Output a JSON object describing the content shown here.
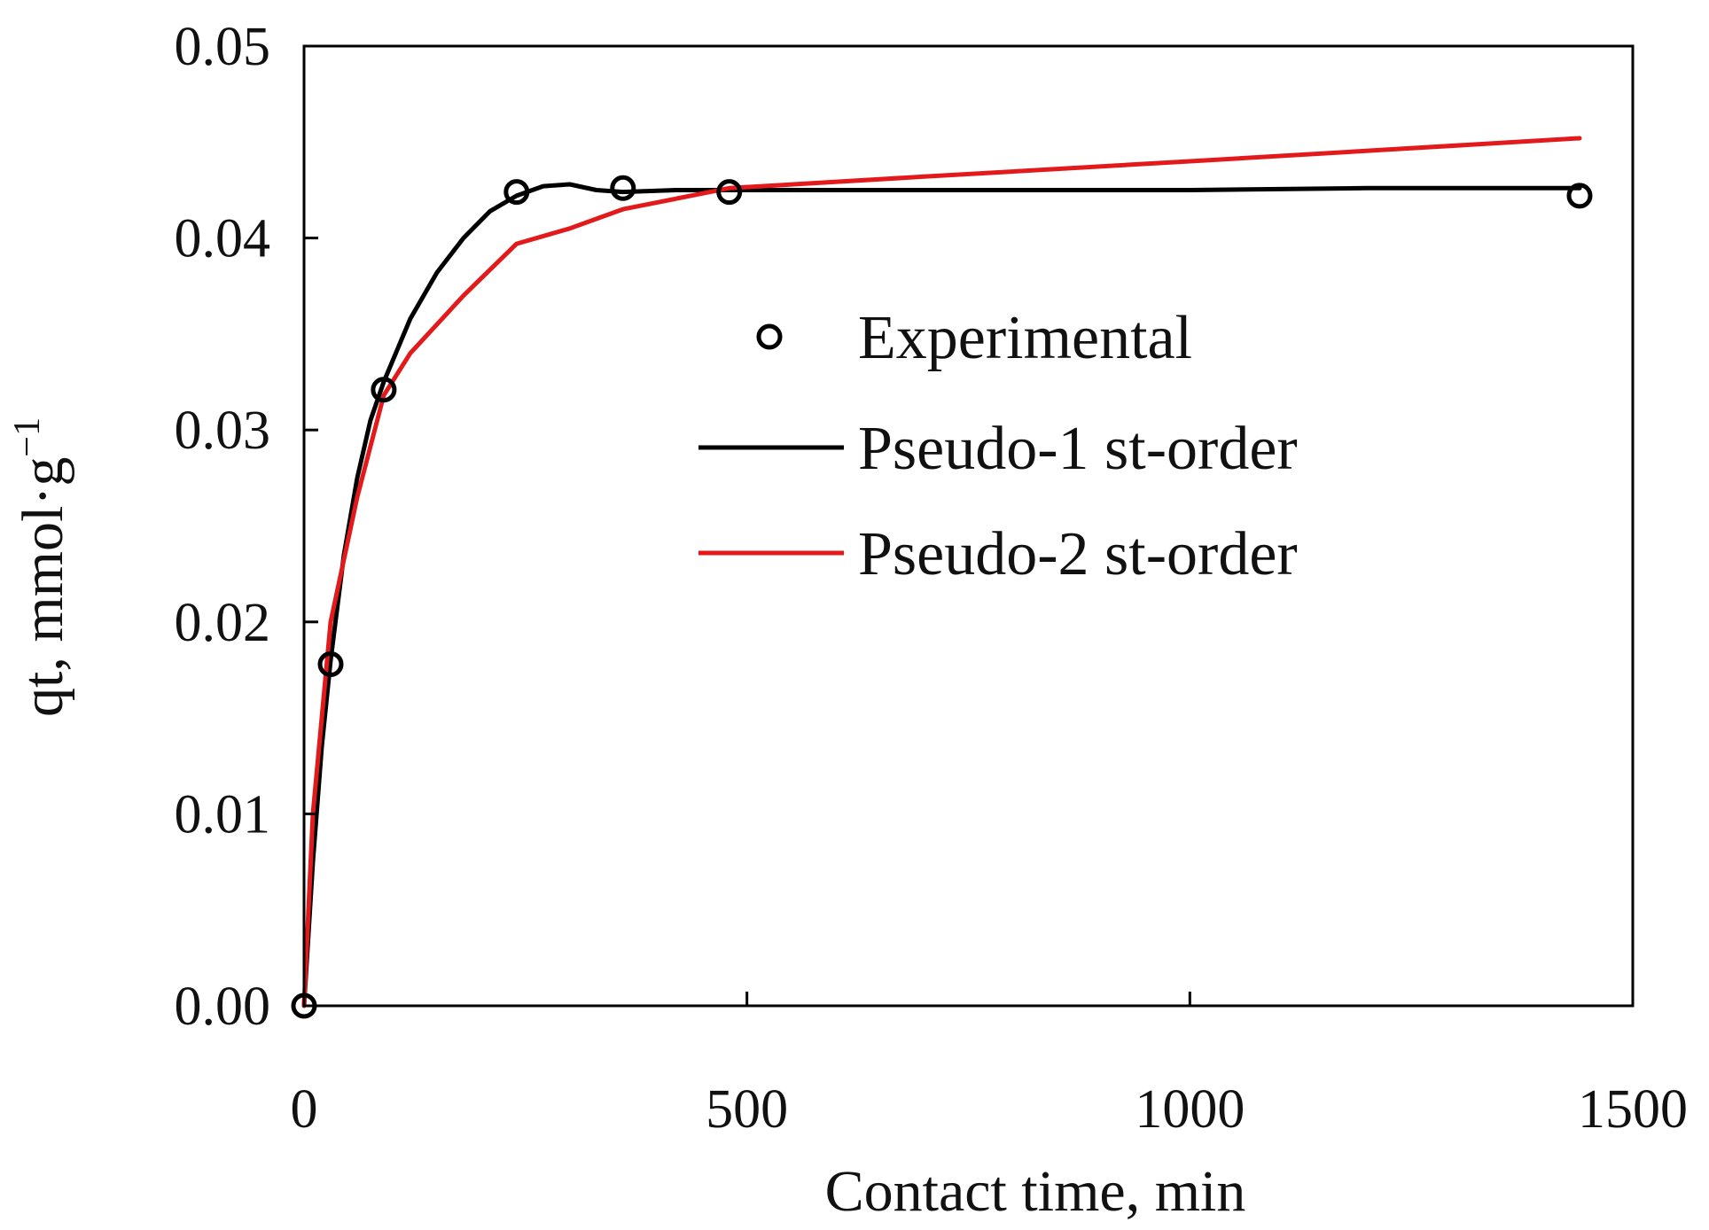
{
  "chart_data": {
    "type": "line",
    "xlabel": "Contact time, min",
    "ylabel": "qt, mmol·g",
    "ylabel_superscript": "−1",
    "xlim": [
      0,
      1500
    ],
    "ylim": [
      0,
      0.05
    ],
    "x_ticks": [
      0,
      500,
      1000,
      1500
    ],
    "x_tick_labels": [
      "0",
      "500",
      "1000",
      "1500"
    ],
    "y_ticks": [
      0,
      0.01,
      0.02,
      0.03,
      0.04,
      0.05
    ],
    "y_tick_labels": [
      "0.00",
      "0.01",
      "0.02",
      "0.03",
      "0.04",
      "0.05"
    ],
    "grid": false,
    "legend_position": "center-right",
    "series": [
      {
        "name": "Experimental",
        "kind": "scatter",
        "marker": "open-circle",
        "color": "#000000",
        "x": [
          0,
          30,
          90,
          240,
          360,
          480,
          1440
        ],
        "y": [
          0.0,
          0.0178,
          0.0321,
          0.0424,
          0.0426,
          0.0424,
          0.0422
        ]
      },
      {
        "name": "Pseudo-1 st-order",
        "kind": "line",
        "color": "#000000",
        "x": [
          0,
          10,
          20,
          30,
          45,
          60,
          75,
          90,
          120,
          150,
          180,
          210,
          240,
          270,
          300,
          330,
          360,
          420,
          480,
          600,
          800,
          1000,
          1200,
          1440
        ],
        "y": [
          0.0,
          0.0075,
          0.0135,
          0.018,
          0.0235,
          0.0275,
          0.0305,
          0.0325,
          0.0358,
          0.0382,
          0.04,
          0.0414,
          0.0422,
          0.0427,
          0.0428,
          0.0425,
          0.0424,
          0.0425,
          0.0425,
          0.0425,
          0.0425,
          0.0425,
          0.0426,
          0.0426
        ]
      },
      {
        "name": "Pseudo-2 st-order",
        "kind": "line",
        "color": "#e31a1c",
        "x": [
          0,
          10,
          30,
          60,
          90,
          120,
          180,
          240,
          300,
          360,
          480,
          700,
          1000,
          1440
        ],
        "y": [
          0.0,
          0.01,
          0.02,
          0.0265,
          0.0318,
          0.034,
          0.037,
          0.0397,
          0.0405,
          0.0415,
          0.0426,
          0.0432,
          0.044,
          0.0452
        ]
      }
    ]
  }
}
